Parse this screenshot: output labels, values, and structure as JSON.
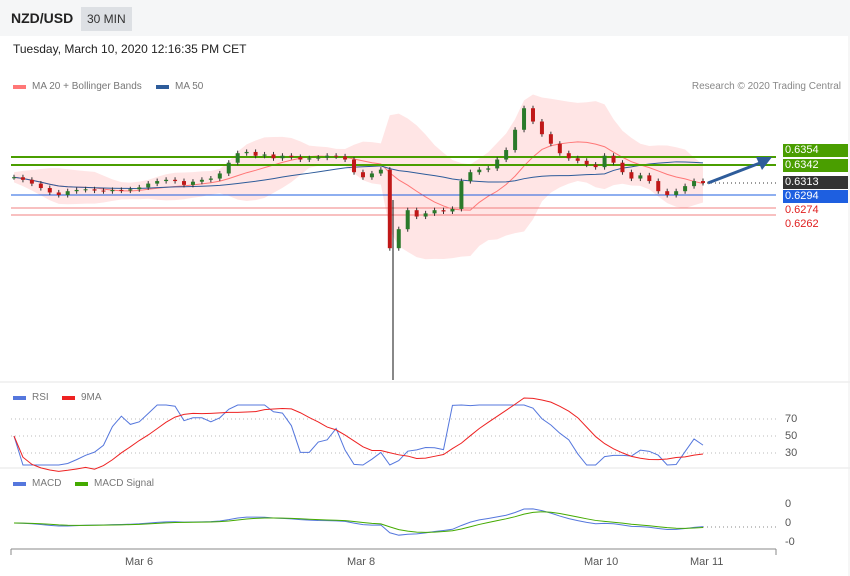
{
  "header": {
    "symbol": "NZD/USD",
    "timeframe": "30 MIN",
    "datetime": "Tuesday, March 10, 2020 12:16:35 PM CET"
  },
  "legend": {
    "ma20": "MA 20 + Bollinger Bands",
    "ma50": "MA 50",
    "rsi": "RSI",
    "rsi_ma": "9MA",
    "macd": "MACD",
    "macd_signal": "MACD Signal"
  },
  "copyright": "Research © 2020 Trading Central",
  "colors": {
    "ma20": "#f77",
    "ma50": "#2e5c9a",
    "resistance": "#4a9e00",
    "current": "#333333",
    "support_blue": "#1e5fe0",
    "support_red": "#e02020",
    "rsi": "#5577dd",
    "rsi_ma": "#ee2222",
    "macd": "#5577dd",
    "signal": "#44aa00"
  },
  "price_labels": {
    "r1": "0.6354",
    "r2": "0.6342",
    "current": "0.6313",
    "s0": "0.6294",
    "s1": "0.6274",
    "s2": "0.6262"
  },
  "rsi_levels": [
    "70",
    "50",
    "30"
  ],
  "macd_levels": [
    "0",
    "0",
    "-0"
  ],
  "x_ticks": [
    "Mar 6",
    "Mar 8",
    "Mar 10",
    "Mar 11"
  ],
  "chart_data": {
    "type": "candlestick",
    "ylabel": "",
    "closes": [
      0.6322,
      0.6318,
      0.6312,
      0.6305,
      0.6298,
      0.6294,
      0.63,
      0.6302,
      0.6303,
      0.6301,
      0.63,
      0.6302,
      0.6301,
      0.6303,
      0.6306,
      0.6312,
      0.6316,
      0.6318,
      0.6316,
      0.631,
      0.6315,
      0.6318,
      0.632,
      0.6328,
      0.6345,
      0.636,
      0.6362,
      0.6356,
      0.6358,
      0.6352,
      0.6356,
      0.6354,
      0.635,
      0.6352,
      0.6353,
      0.6356,
      0.6355,
      0.635,
      0.633,
      0.6322,
      0.6328,
      0.6334,
      0.621,
      0.624,
      0.627,
      0.626,
      0.6265,
      0.627,
      0.6268,
      0.6272,
      0.6316,
      0.633,
      0.6334,
      0.6336,
      0.635,
      0.6365,
      0.6397,
      0.6431,
      0.641,
      0.639,
      0.6375,
      0.636,
      0.6352,
      0.6348,
      0.6342,
      0.6338,
      0.6356,
      0.6345,
      0.633,
      0.632,
      0.6325,
      0.6316,
      0.63,
      0.6294,
      0.63,
      0.6308,
      0.6316,
      0.6313
    ]
  }
}
